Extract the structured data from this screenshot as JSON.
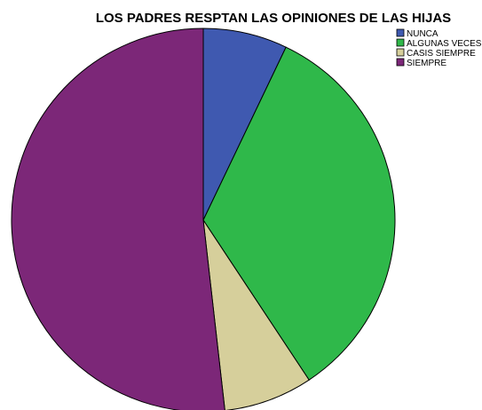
{
  "chart_data": {
    "type": "pie",
    "title": "LOS PADRES RESPTAN LAS OPINIONES DE LAS HIJAS",
    "categories": [
      "NUNCA",
      "ALGUNAS VECES",
      "CASIS SIEMPRE",
      "SIEMPRE"
    ],
    "values": [
      7.1,
      33.6,
      7.5,
      51.8
    ],
    "colors": [
      "#3f59b0",
      "#2fb84a",
      "#d6cf9b",
      "#7c2778"
    ],
    "start_angle": "12 o'clock",
    "direction": "clockwise",
    "legend_position": "top-right"
  }
}
